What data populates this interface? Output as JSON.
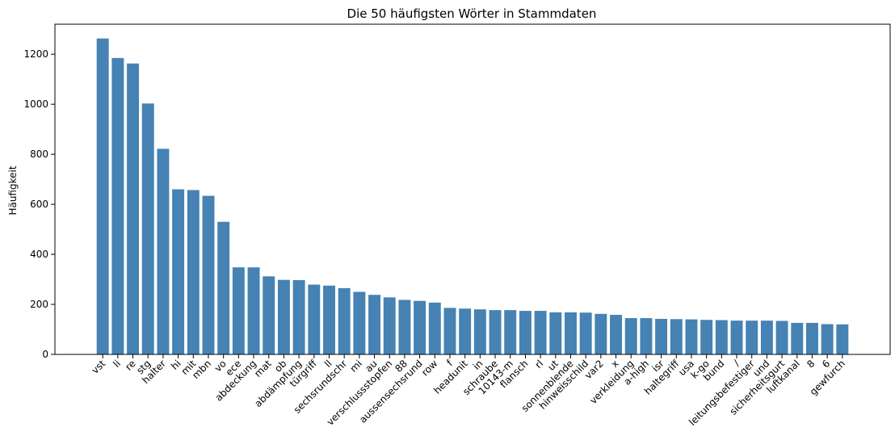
{
  "chart_data": {
    "type": "bar",
    "title": "Die 50 häufigsten Wörter in Stammdaten",
    "xlabel": "",
    "ylabel": "Häufigkeit",
    "ylim": [
      0,
      1320
    ],
    "yticks": [
      0,
      200,
      400,
      600,
      800,
      1000,
      1200
    ],
    "grid": false,
    "bar_color": "#4682b4",
    "categories": [
      "vst",
      "li",
      "re",
      "stg",
      "halter",
      "hi",
      "mit",
      "mbn",
      "vo",
      "ece",
      "abdeckung",
      "mat",
      "ob",
      "abdämpfung",
      "türgriff",
      "ll",
      "sechsrundschr",
      "mi",
      "au",
      "verschlussstopfen",
      "88",
      "aussensechsrund",
      "row",
      "f",
      "headunit",
      "in",
      "schraube",
      "10143-m",
      "flansch",
      "rl",
      "ut",
      "sonnenblende",
      "hinweisschild",
      "var2",
      "x",
      "verkleidung",
      "a-high",
      "isr",
      "haltegriff",
      "usa",
      "k-go",
      "bund",
      "/",
      "leitungsbefestiger",
      "und",
      "sicherheitsgurt",
      "luftkanal",
      "8",
      "6",
      "gewfurch"
    ],
    "values": [
      1263,
      1185,
      1163,
      1003,
      822,
      660,
      657,
      634,
      530,
      348,
      348,
      312,
      298,
      297,
      279,
      275,
      265,
      250,
      238,
      228,
      218,
      214,
      207,
      186,
      183,
      180,
      177,
      177,
      174,
      174,
      168,
      168,
      167,
      162,
      158,
      145,
      145,
      142,
      141,
      140,
      138,
      137,
      135,
      135,
      135,
      134,
      126,
      126,
      121,
      120
    ]
  }
}
